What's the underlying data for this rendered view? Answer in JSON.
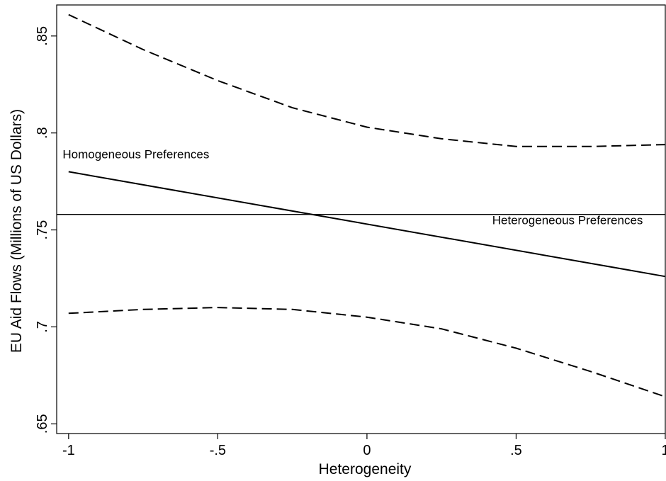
{
  "chart_data": {
    "type": "line",
    "title": "",
    "xlabel": "Heterogeneity",
    "ylabel": "EU Aid Flows (Millions of US Dollars)",
    "xlim": [
      -1.04,
      1.0
    ],
    "ylim": [
      0.645,
      0.866
    ],
    "x_ticks": [
      -1,
      -0.5,
      0,
      0.5,
      1
    ],
    "x_tick_labels": [
      "-1",
      "-.5",
      "0",
      ".5",
      "1"
    ],
    "y_ticks": [
      0.65,
      0.7,
      0.75,
      0.8,
      0.85
    ],
    "y_tick_labels": [
      ".65",
      ".7",
      ".75",
      ".8",
      ".85"
    ],
    "grid": false,
    "legend": "none",
    "series": [
      {
        "style": "solid",
        "x": [
          -1,
          1
        ],
        "y": [
          0.78,
          0.726
        ]
      },
      {
        "style": "dashed",
        "x": [
          -1,
          -0.75,
          -0.5,
          -0.25,
          0,
          0.25,
          0.5,
          0.75,
          1
        ],
        "y": [
          0.861,
          0.843,
          0.827,
          0.813,
          0.803,
          0.797,
          0.793,
          0.793,
          0.794
        ]
      },
      {
        "style": "dashed",
        "x": [
          -1,
          -0.75,
          -0.5,
          -0.25,
          0,
          0.25,
          0.5,
          0.75,
          1
        ],
        "y": [
          0.707,
          0.709,
          0.71,
          0.709,
          0.705,
          0.699,
          0.689,
          0.677,
          0.664
        ]
      }
    ],
    "hlines": [
      {
        "y": 0.758
      }
    ],
    "annotations": [
      {
        "text": "Homogeneous Preferences",
        "x": -1.02,
        "y": 0.787
      },
      {
        "text": "Heterogeneous Preferences",
        "x": 0.42,
        "y": 0.753
      }
    ]
  }
}
